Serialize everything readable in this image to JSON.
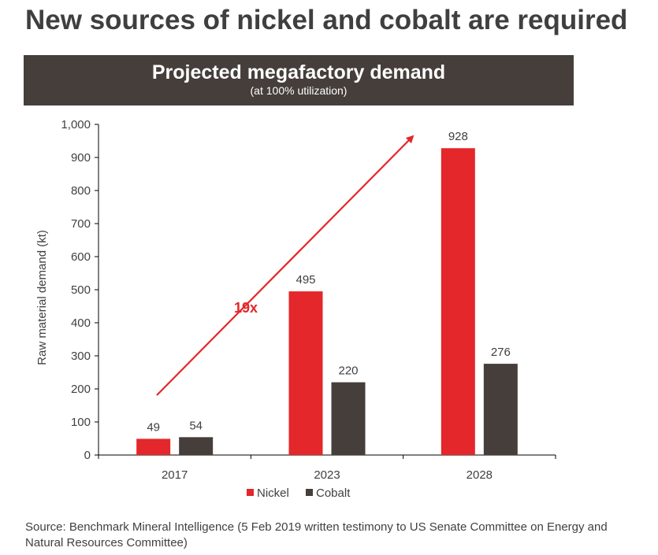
{
  "headline": "New sources of nickel and cobalt are required",
  "banner": {
    "title": "Projected megafactory demand",
    "subtitle": "(at 100% utilization)"
  },
  "annotation": {
    "label": "19x"
  },
  "source_text": "Source: Benchmark Mineral Intelligence (5 Feb 2019 written testimony to US Senate Committee on Energy and Natural Resources Committee)",
  "chart_data": {
    "type": "bar",
    "title": "Projected megafactory demand",
    "subtitle": "(at 100% utilization)",
    "xlabel": "",
    "ylabel": "Raw material demand (kt)",
    "categories": [
      "2017",
      "2023",
      "2028"
    ],
    "series": [
      {
        "name": "Nickel",
        "color": "#e3272a",
        "values": [
          49,
          495,
          928
        ]
      },
      {
        "name": "Cobalt",
        "color": "#453e3b",
        "values": [
          54,
          220,
          276
        ]
      }
    ],
    "ylim": [
      0,
      1000
    ],
    "yticks": [
      0,
      100,
      200,
      300,
      400,
      500,
      600,
      700,
      800,
      900,
      1000
    ],
    "ytick_labels": [
      "0",
      "100",
      "200",
      "300",
      "400",
      "500",
      "600",
      "700",
      "800",
      "900",
      "1,000"
    ],
    "grid": false,
    "legend_position": "bottom-center",
    "arrow_color": "#e3272a"
  }
}
